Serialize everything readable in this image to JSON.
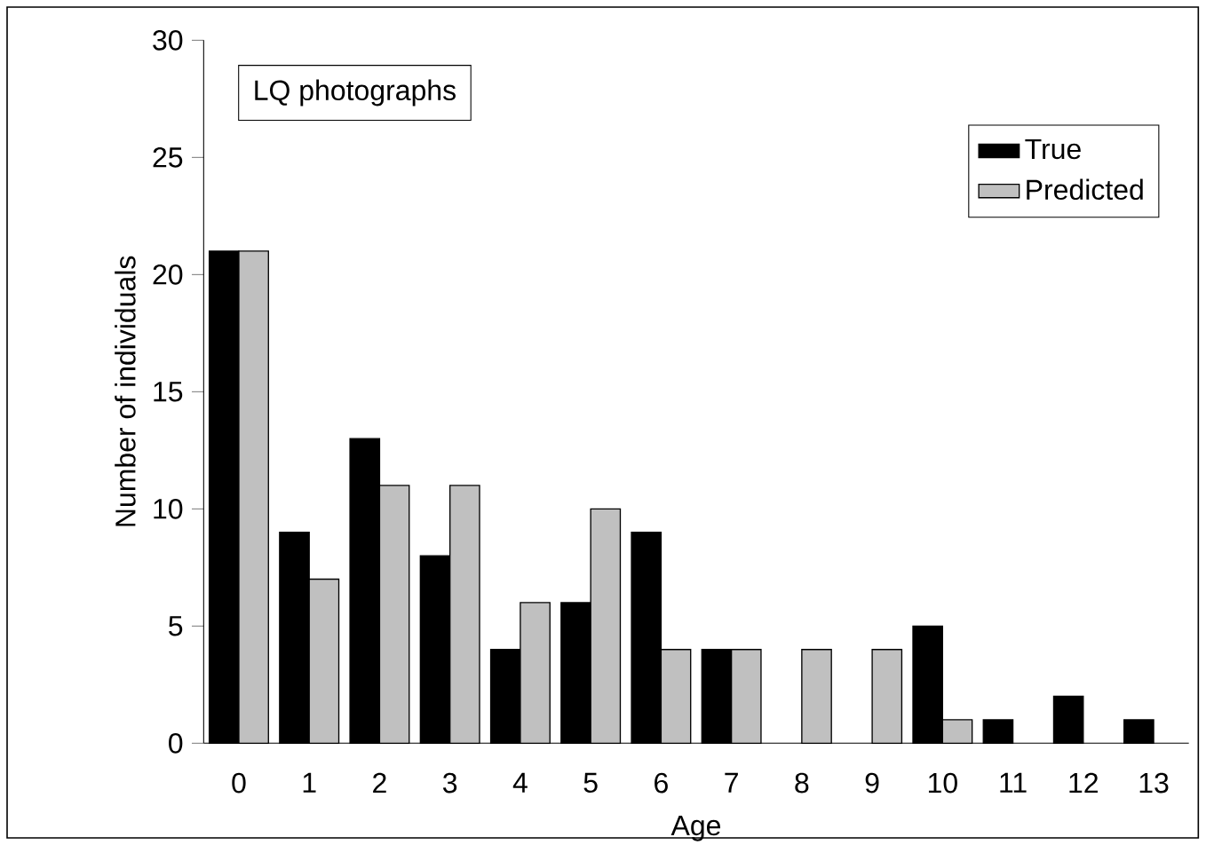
{
  "chart_data": {
    "type": "bar",
    "title": "LQ photographs",
    "xlabel": "Age",
    "ylabel": "Number of individuals",
    "categories": [
      "0",
      "1",
      "2",
      "3",
      "4",
      "5",
      "6",
      "7",
      "8",
      "9",
      "10",
      "11",
      "12",
      "13"
    ],
    "series": [
      {
        "name": "True",
        "color": "#000000",
        "values": [
          21,
          9,
          13,
          8,
          4,
          6,
          9,
          4,
          0,
          0,
          5,
          1,
          2,
          1
        ]
      },
      {
        "name": "Predicted",
        "color": "#c0c0c0",
        "values": [
          21,
          7,
          11,
          11,
          6,
          10,
          4,
          4,
          4,
          4,
          1,
          0,
          0,
          0
        ]
      }
    ],
    "ylim": [
      0,
      30
    ],
    "yticks": [
      0,
      5,
      10,
      15,
      20,
      25,
      30
    ],
    "grid": false,
    "legend": "top right"
  }
}
